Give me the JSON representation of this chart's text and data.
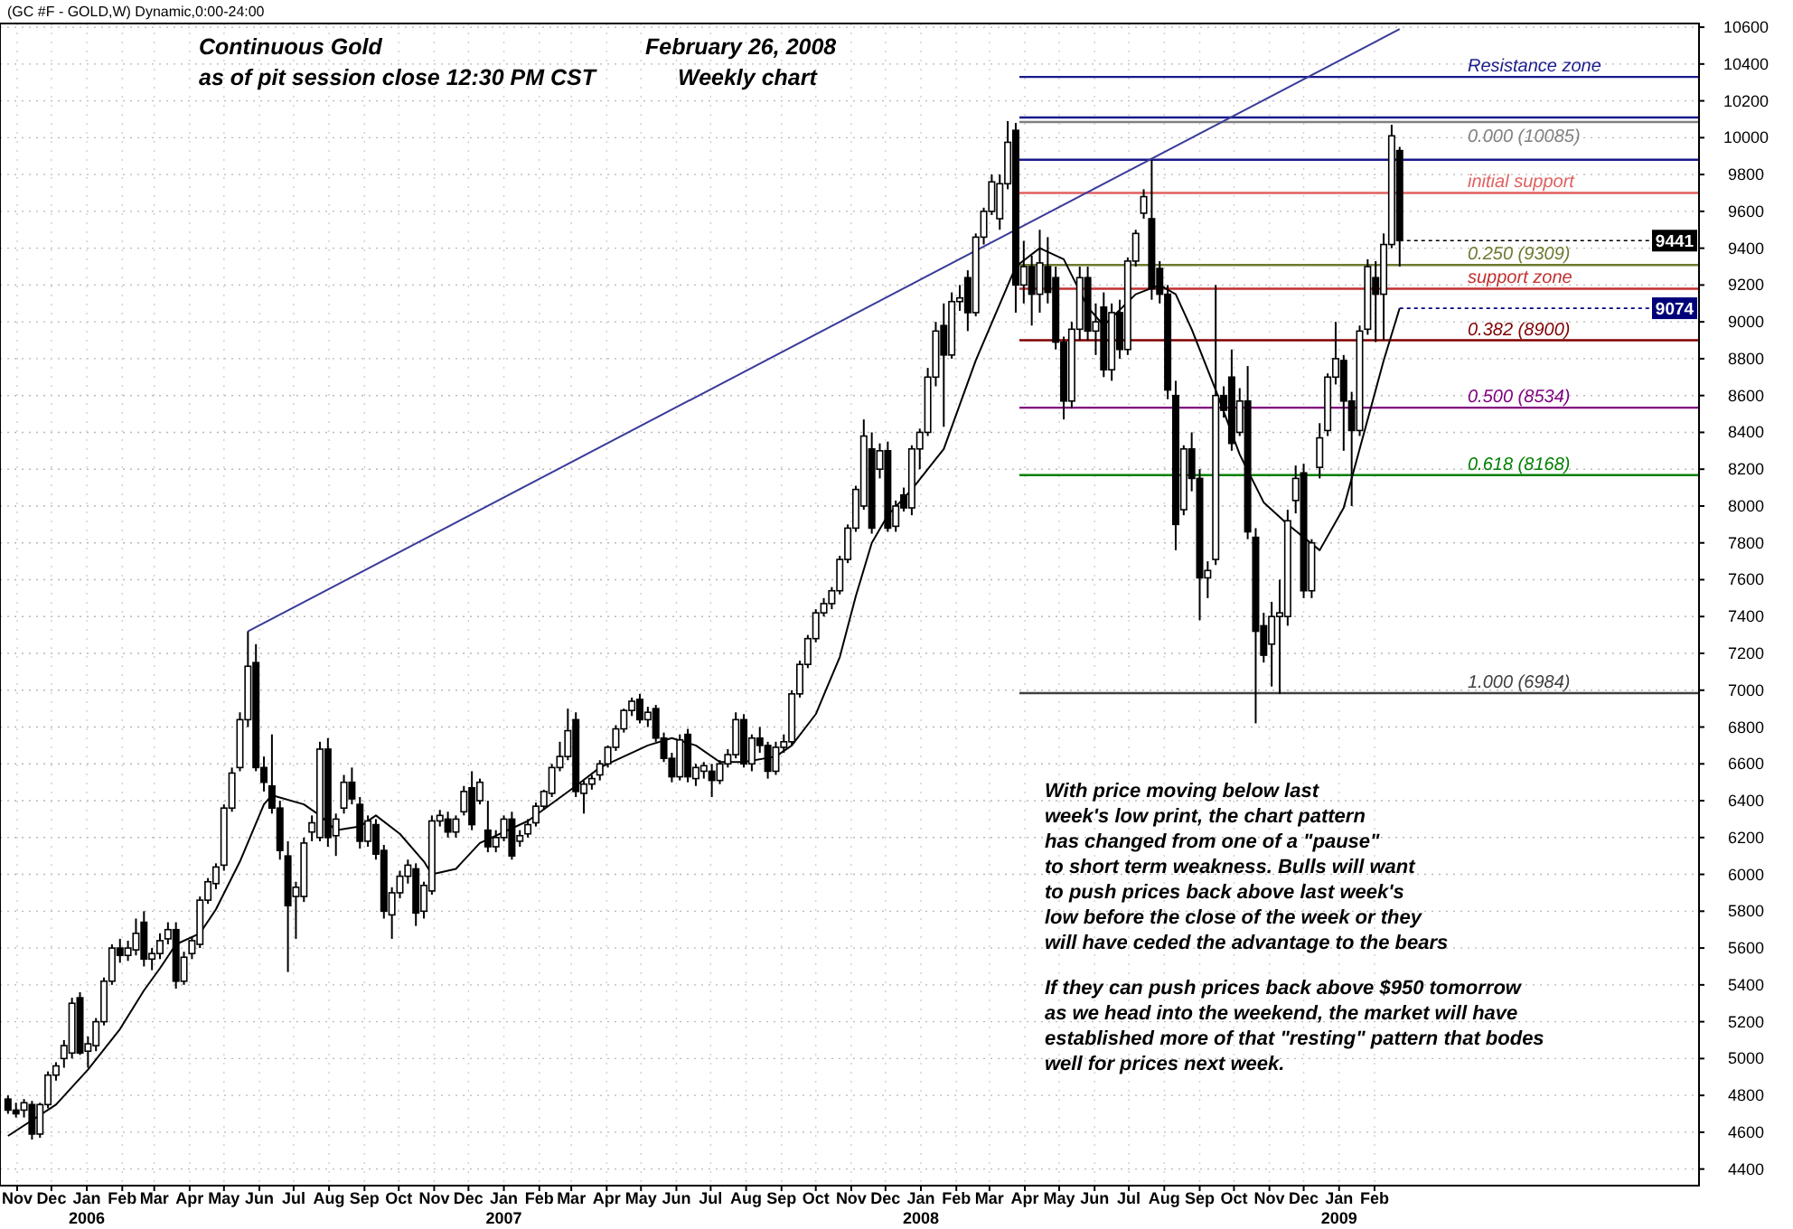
{
  "chart_data": {
    "type": "candlestick",
    "title": "Continuous Gold",
    "subtitle": "as of pit session close 12:30 PM CST",
    "x": [
      "2005-10-24",
      "2005-10-31",
      "2005-11-07",
      "2005-11-14",
      "2005-11-21",
      "2005-11-28",
      "2005-12-05",
      "2005-12-12",
      "2005-12-19",
      "2005-12-26",
      "2006-01-02",
      "2006-01-09",
      "2006-01-16",
      "2006-01-23",
      "2006-01-30",
      "2006-02-06",
      "2006-02-13",
      "2006-02-20",
      "2006-02-27",
      "2006-03-06",
      "2006-03-13",
      "2006-03-20",
      "2006-03-27",
      "2006-04-03",
      "2006-04-10",
      "2006-04-17",
      "2006-04-24",
      "2006-05-01",
      "2006-05-08",
      "2006-05-15",
      "2006-05-22",
      "2006-05-29",
      "2006-06-05",
      "2006-06-12",
      "2006-06-19",
      "2006-06-26",
      "2006-07-03",
      "2006-07-10",
      "2006-07-17",
      "2006-07-24",
      "2006-07-31",
      "2006-08-07",
      "2006-08-14",
      "2006-08-21",
      "2006-08-28",
      "2006-09-04",
      "2006-09-11",
      "2006-09-18",
      "2006-09-25",
      "2006-10-02",
      "2006-10-09",
      "2006-10-16",
      "2006-10-23",
      "2006-10-30",
      "2006-11-06",
      "2006-11-13",
      "2006-11-20",
      "2006-11-27",
      "2006-12-04",
      "2006-12-11",
      "2006-12-18",
      "2006-12-25",
      "2007-01-01",
      "2007-01-08",
      "2007-01-15",
      "2007-01-22",
      "2007-01-29",
      "2007-02-05",
      "2007-02-12",
      "2007-02-19",
      "2007-02-26",
      "2007-03-05",
      "2007-03-12",
      "2007-03-19",
      "2007-03-26",
      "2007-04-02",
      "2007-04-09",
      "2007-04-16",
      "2007-04-23",
      "2007-04-30",
      "2007-05-07",
      "2007-05-14",
      "2007-05-21",
      "2007-05-28",
      "2007-06-04",
      "2007-06-11",
      "2007-06-18",
      "2007-06-25",
      "2007-07-02",
      "2007-07-09",
      "2007-07-16",
      "2007-07-23",
      "2007-07-30",
      "2007-08-06",
      "2007-08-13",
      "2007-08-20",
      "2007-08-27",
      "2007-09-03",
      "2007-09-10",
      "2007-09-17",
      "2007-09-24",
      "2007-10-01",
      "2007-10-08",
      "2007-10-15",
      "2007-10-22",
      "2007-10-29",
      "2007-11-05",
      "2007-11-12",
      "2007-11-19",
      "2007-11-26",
      "2007-12-03",
      "2007-12-10",
      "2007-12-17",
      "2007-12-24",
      "2007-12-31",
      "2008-01-07",
      "2008-01-14",
      "2008-01-21",
      "2008-01-28",
      "2008-02-04",
      "2008-02-11",
      "2008-02-18",
      "2008-02-25",
      "2008-03-03",
      "2008-03-10",
      "2008-03-17",
      "2008-03-24",
      "2008-03-31",
      "2008-04-07",
      "2008-04-14",
      "2008-04-21",
      "2008-04-28",
      "2008-05-05",
      "2008-05-12",
      "2008-05-19",
      "2008-05-26",
      "2008-06-02",
      "2008-06-09",
      "2008-06-16",
      "2008-06-23",
      "2008-06-30",
      "2008-07-07",
      "2008-07-14",
      "2008-07-21",
      "2008-07-28",
      "2008-08-04",
      "2008-08-11",
      "2008-08-18",
      "2008-08-25",
      "2008-09-01",
      "2008-09-08",
      "2008-09-15",
      "2008-09-22",
      "2008-09-29",
      "2008-10-06",
      "2008-10-13",
      "2008-10-20",
      "2008-10-27",
      "2008-11-03",
      "2008-11-10",
      "2008-11-17",
      "2008-11-24",
      "2008-12-01",
      "2008-12-08",
      "2008-12-15",
      "2008-12-22",
      "2008-12-29",
      "2009-01-05",
      "2009-01-12",
      "2009-01-19",
      "2009-01-26",
      "2009-02-02",
      "2009-02-09",
      "2009-02-16",
      "2009-02-23"
    ],
    "ohlc": [
      [
        4780,
        4800,
        4700,
        4720
      ],
      [
        4720,
        4760,
        4680,
        4700
      ],
      [
        4720,
        4780,
        4680,
        4760
      ],
      [
        4750,
        4770,
        4560,
        4590
      ],
      [
        4590,
        4760,
        4570,
        4750
      ],
      [
        4750,
        4930,
        4730,
        4910
      ],
      [
        4910,
        4980,
        4880,
        4960
      ],
      [
        5000,
        5100,
        4950,
        5070
      ],
      [
        5030,
        5330,
        5000,
        5300
      ],
      [
        5330,
        5360,
        5020,
        5030
      ],
      [
        5040,
        5120,
        4950,
        5080
      ],
      [
        5070,
        5220,
        5040,
        5200
      ],
      [
        5200,
        5440,
        5180,
        5420
      ],
      [
        5420,
        5620,
        5400,
        5600
      ],
      [
        5600,
        5650,
        5520,
        5560
      ],
      [
        5560,
        5640,
        5530,
        5600
      ],
      [
        5590,
        5760,
        5560,
        5680
      ],
      [
        5740,
        5800,
        5500,
        5540
      ],
      [
        5540,
        5600,
        5480,
        5570
      ],
      [
        5570,
        5680,
        5540,
        5640
      ],
      [
        5650,
        5740,
        5620,
        5700
      ],
      [
        5700,
        5740,
        5380,
        5420
      ],
      [
        5420,
        5580,
        5400,
        5550
      ],
      [
        5570,
        5660,
        5540,
        5640
      ],
      [
        5620,
        5880,
        5600,
        5860
      ],
      [
        5860,
        5980,
        5840,
        5960
      ],
      [
        5950,
        6060,
        5920,
        6040
      ],
      [
        6050,
        6380,
        6020,
        6360
      ],
      [
        6360,
        6580,
        6340,
        6550
      ],
      [
        6580,
        6880,
        6560,
        6840
      ],
      [
        6840,
        7320,
        6800,
        7130
      ],
      [
        7150,
        7250,
        6560,
        6580
      ],
      [
        6580,
        6640,
        6450,
        6500
      ],
      [
        6480,
        6760,
        6330,
        6360
      ],
      [
        6360,
        6400,
        6080,
        6130
      ],
      [
        6100,
        6180,
        5470,
        5830
      ],
      [
        5880,
        5960,
        5650,
        5930
      ],
      [
        5880,
        6200,
        5850,
        6170
      ],
      [
        6230,
        6320,
        6180,
        6280
      ],
      [
        6200,
        6720,
        6180,
        6680
      ],
      [
        6680,
        6740,
        6150,
        6200
      ],
      [
        6210,
        6330,
        6100,
        6300
      ],
      [
        6360,
        6540,
        6330,
        6500
      ],
      [
        6500,
        6580,
        6380,
        6410
      ],
      [
        6380,
        6420,
        6140,
        6180
      ],
      [
        6180,
        6320,
        6150,
        6290
      ],
      [
        6270,
        6300,
        6080,
        6110
      ],
      [
        6130,
        6160,
        5760,
        5800
      ],
      [
        5780,
        5930,
        5650,
        5900
      ],
      [
        5900,
        6020,
        5870,
        5990
      ],
      [
        5990,
        6080,
        5950,
        6050
      ],
      [
        6030,
        6060,
        5720,
        5790
      ],
      [
        5800,
        5960,
        5760,
        5940
      ],
      [
        5910,
        6320,
        5890,
        6290
      ],
      [
        6290,
        6350,
        6260,
        6320
      ],
      [
        6300,
        6340,
        6200,
        6230
      ],
      [
        6230,
        6320,
        6200,
        6300
      ],
      [
        6340,
        6480,
        6320,
        6450
      ],
      [
        6470,
        6560,
        6240,
        6270
      ],
      [
        6400,
        6520,
        6380,
        6500
      ],
      [
        6240,
        6400,
        6120,
        6150
      ],
      [
        6150,
        6240,
        6120,
        6200
      ],
      [
        6200,
        6320,
        6180,
        6300
      ],
      [
        6300,
        6340,
        6080,
        6100
      ],
      [
        6180,
        6240,
        6150,
        6210
      ],
      [
        6220,
        6300,
        6200,
        6270
      ],
      [
        6280,
        6390,
        6260,
        6370
      ],
      [
        6370,
        6460,
        6350,
        6450
      ],
      [
        6440,
        6600,
        6420,
        6580
      ],
      [
        6580,
        6720,
        6560,
        6640
      ],
      [
        6640,
        6900,
        6620,
        6780
      ],
      [
        6840,
        6880,
        6420,
        6450
      ],
      [
        6440,
        6510,
        6330,
        6490
      ],
      [
        6490,
        6540,
        6460,
        6520
      ],
      [
        6540,
        6620,
        6510,
        6600
      ],
      [
        6600,
        6700,
        6580,
        6690
      ],
      [
        6690,
        6810,
        6670,
        6790
      ],
      [
        6790,
        6900,
        6770,
        6890
      ],
      [
        6890,
        6960,
        6860,
        6940
      ],
      [
        6950,
        6980,
        6820,
        6840
      ],
      [
        6840,
        6910,
        6800,
        6880
      ],
      [
        6900,
        6920,
        6720,
        6740
      ],
      [
        6740,
        6770,
        6610,
        6630
      ],
      [
        6630,
        6660,
        6500,
        6530
      ],
      [
        6530,
        6760,
        6510,
        6730
      ],
      [
        6760,
        6790,
        6500,
        6530
      ],
      [
        6520,
        6600,
        6480,
        6580
      ],
      [
        6560,
        6610,
        6520,
        6590
      ],
      [
        6560,
        6600,
        6420,
        6510
      ],
      [
        6510,
        6620,
        6490,
        6600
      ],
      [
        6600,
        6680,
        6580,
        6650
      ],
      [
        6650,
        6880,
        6630,
        6840
      ],
      [
        6840,
        6870,
        6580,
        6600
      ],
      [
        6600,
        6760,
        6560,
        6740
      ],
      [
        6740,
        6800,
        6660,
        6700
      ],
      [
        6700,
        6720,
        6520,
        6560
      ],
      [
        6560,
        6720,
        6540,
        6690
      ],
      [
        6690,
        6760,
        6660,
        6720
      ],
      [
        6720,
        7000,
        6700,
        6980
      ],
      [
        6980,
        7160,
        6960,
        7140
      ],
      [
        7140,
        7300,
        7120,
        7280
      ],
      [
        7280,
        7440,
        7260,
        7420
      ],
      [
        7420,
        7500,
        7400,
        7470
      ],
      [
        7470,
        7560,
        7440,
        7540
      ],
      [
        7540,
        7730,
        7520,
        7710
      ],
      [
        7710,
        7900,
        7690,
        7880
      ],
      [
        7880,
        8110,
        7860,
        8090
      ],
      [
        8000,
        8470,
        7980,
        8380
      ],
      [
        8310,
        8400,
        7850,
        7880
      ],
      [
        8200,
        8340,
        8150,
        8300
      ],
      [
        8300,
        8350,
        7860,
        7880
      ],
      [
        7890,
        8030,
        7860,
        8000
      ],
      [
        8060,
        8100,
        7970,
        7990
      ],
      [
        7990,
        8330,
        7950,
        8310
      ],
      [
        8310,
        8420,
        8200,
        8400
      ],
      [
        8400,
        8750,
        8380,
        8700
      ],
      [
        8700,
        9000,
        8650,
        8950
      ],
      [
        8980,
        9100,
        8430,
        8820
      ],
      [
        8820,
        9160,
        8800,
        9110
      ],
      [
        9110,
        9200,
        9060,
        9130
      ],
      [
        9240,
        9280,
        8950,
        9050
      ],
      [
        9050,
        9480,
        9030,
        9460
      ],
      [
        9460,
        9620,
        9420,
        9600
      ],
      [
        9600,
        9800,
        9580,
        9760
      ],
      [
        9560,
        9800,
        9500,
        9750
      ],
      [
        9750,
        10090,
        9720,
        9975
      ],
      [
        10040,
        10080,
        9050,
        9200
      ],
      [
        9200,
        9440,
        9100,
        9300
      ],
      [
        9300,
        9360,
        8980,
        9150
      ],
      [
        9150,
        9500,
        9050,
        9320
      ],
      [
        9300,
        9460,
        9100,
        9160
      ],
      [
        9240,
        9300,
        8850,
        8890
      ],
      [
        8890,
        8920,
        8470,
        8570
      ],
      [
        8570,
        9000,
        8530,
        8960
      ],
      [
        8960,
        9300,
        8900,
        9240
      ],
      [
        9240,
        9300,
        8900,
        8950
      ],
      [
        8950,
        9100,
        8820,
        9000
      ],
      [
        9080,
        9160,
        8700,
        8740
      ],
      [
        8740,
        9100,
        8680,
        9050
      ],
      [
        9050,
        9120,
        8800,
        8850
      ],
      [
        8850,
        9350,
        8820,
        9330
      ],
      [
        9330,
        9500,
        9300,
        9480
      ],
      [
        9590,
        9720,
        9560,
        9680
      ],
      [
        9560,
        9880,
        9120,
        9180
      ],
      [
        9290,
        9330,
        9100,
        9150
      ],
      [
        9150,
        9200,
        8580,
        8630
      ],
      [
        8600,
        8680,
        7760,
        7900
      ],
      [
        7980,
        8330,
        7950,
        8310
      ],
      [
        8310,
        8400,
        8080,
        8150
      ],
      [
        8150,
        8200,
        7380,
        7610
      ],
      [
        7610,
        7700,
        7500,
        7650
      ],
      [
        7710,
        9200,
        7680,
        8600
      ],
      [
        8600,
        8650,
        8480,
        8520
      ],
      [
        8700,
        8850,
        8300,
        8340
      ],
      [
        8400,
        8640,
        8380,
        8570
      ],
      [
        8570,
        8760,
        7820,
        7860
      ],
      [
        7830,
        7880,
        6820,
        7320
      ],
      [
        7350,
        7420,
        7150,
        7190
      ],
      [
        7250,
        7480,
        7020,
        7400
      ],
      [
        7400,
        7600,
        6980,
        7420
      ],
      [
        7400,
        7980,
        7350,
        7920
      ],
      [
        8030,
        8220,
        7960,
        8150
      ],
      [
        8180,
        8230,
        7500,
        7540
      ],
      [
        7540,
        7820,
        7500,
        7800
      ],
      [
        8210,
        8450,
        8150,
        8370
      ],
      [
        8410,
        8720,
        8380,
        8700
      ],
      [
        8700,
        9000,
        8660,
        8800
      ],
      [
        8790,
        8820,
        8300,
        8570
      ],
      [
        8570,
        8620,
        8000,
        8410
      ],
      [
        8410,
        8980,
        8380,
        8950
      ],
      [
        8960,
        9340,
        8930,
        9300
      ],
      [
        9240,
        9330,
        8890,
        9150
      ],
      [
        9150,
        9480,
        8900,
        9420
      ],
      [
        9420,
        10070,
        9400,
        10010
      ],
      [
        9930,
        9950,
        9300,
        9441
      ]
    ],
    "series": [
      {
        "type": "line",
        "color": "#000000",
        "x": [
          "2005-10-24",
          "2005-12-05",
          "2006-01-02",
          "2006-01-30",
          "2006-02-20",
          "2006-03-06",
          "2006-03-20",
          "2006-04-10",
          "2006-04-24",
          "2006-05-15",
          "2006-06-05",
          "2006-06-12",
          "2006-07-10",
          "2006-07-24",
          "2006-08-07",
          "2006-08-28",
          "2006-09-11",
          "2006-10-02",
          "2006-10-23",
          "2006-10-30",
          "2006-11-20",
          "2006-12-11",
          "2007-01-22",
          "2007-03-05",
          "2007-03-26",
          "2007-05-07",
          "2007-05-28",
          "2007-06-18",
          "2007-07-09",
          "2007-07-30",
          "2007-08-27",
          "2007-09-10",
          "2007-10-01",
          "2007-10-22",
          "2007-11-05",
          "2007-11-19",
          "2007-12-03",
          "2007-12-24",
          "2008-01-21",
          "2008-02-18",
          "2008-03-24",
          "2008-04-14",
          "2008-05-05",
          "2008-05-26",
          "2008-06-09",
          "2008-07-07",
          "2008-07-28",
          "2008-08-11",
          "2008-08-25",
          "2008-09-15",
          "2008-10-06",
          "2008-10-27",
          "2008-11-17",
          "2008-12-15",
          "2009-01-05",
          "2009-01-19",
          "2009-02-09",
          "2009-02-23"
        ],
        "values": [
          4580,
          4750,
          4940,
          5160,
          5370,
          5490,
          5620,
          5680,
          5810,
          6070,
          6380,
          6430,
          6380,
          6320,
          6240,
          6260,
          6320,
          6220,
          6070,
          6000,
          6030,
          6170,
          6290,
          6480,
          6580,
          6700,
          6740,
          6700,
          6610,
          6610,
          6640,
          6700,
          6870,
          7180,
          7510,
          7800,
          7950,
          8090,
          8310,
          8790,
          9300,
          9400,
          9340,
          9080,
          8980,
          9150,
          9200,
          9150,
          8960,
          8630,
          8280,
          8020,
          7900,
          7760,
          7990,
          8310,
          8790,
          9074
        ]
      },
      {
        "type": "line",
        "color": "#3a3a9a",
        "x": [
          "2006-05-22",
          "2009-02-23"
        ],
        "values": [
          7320,
          10590
        ]
      }
    ],
    "xlim": [
      "2005-10-17",
      "2009-11-12"
    ],
    "ylim": [
      4310,
      10620
    ],
    "xticks": [
      {
        "value": "2005-11-01",
        "label": "Nov"
      },
      {
        "value": "2005-12-01",
        "label": "Dec"
      },
      {
        "value": "2006-01-01",
        "label": "Jan\n2006"
      },
      {
        "value": "2006-02-01",
        "label": "Feb"
      },
      {
        "value": "2006-03-01",
        "label": "Mar"
      },
      {
        "value": "2006-04-01",
        "label": "Apr"
      },
      {
        "value": "2006-05-01",
        "label": "May"
      },
      {
        "value": "2006-06-01",
        "label": "Jun"
      },
      {
        "value": "2006-07-01",
        "label": "Jul"
      },
      {
        "value": "2006-08-01",
        "label": "Aug"
      },
      {
        "value": "2006-09-01",
        "label": "Sep"
      },
      {
        "value": "2006-10-01",
        "label": "Oct"
      },
      {
        "value": "2006-11-01",
        "label": "Nov"
      },
      {
        "value": "2006-12-01",
        "label": "Dec"
      },
      {
        "value": "2007-01-01",
        "label": "Jan\n2007"
      },
      {
        "value": "2007-02-01",
        "label": "Feb"
      },
      {
        "value": "2007-03-01",
        "label": "Mar"
      },
      {
        "value": "2007-04-01",
        "label": "Apr"
      },
      {
        "value": "2007-05-01",
        "label": "May"
      },
      {
        "value": "2007-06-01",
        "label": "Jun"
      },
      {
        "value": "2007-07-01",
        "label": "Jul"
      },
      {
        "value": "2007-08-01",
        "label": "Aug"
      },
      {
        "value": "2007-09-01",
        "label": "Sep"
      },
      {
        "value": "2007-10-01",
        "label": "Oct"
      },
      {
        "value": "2007-11-01",
        "label": "Nov"
      },
      {
        "value": "2007-12-01",
        "label": "Dec"
      },
      {
        "value": "2008-01-01",
        "label": "Jan\n2008"
      },
      {
        "value": "2008-02-01",
        "label": "Feb"
      },
      {
        "value": "2008-03-01",
        "label": "Mar"
      },
      {
        "value": "2008-04-01",
        "label": "Apr"
      },
      {
        "value": "2008-05-01",
        "label": "May"
      },
      {
        "value": "2008-06-01",
        "label": "Jun"
      },
      {
        "value": "2008-07-01",
        "label": "Jul"
      },
      {
        "value": "2008-08-01",
        "label": "Aug"
      },
      {
        "value": "2008-09-01",
        "label": "Sep"
      },
      {
        "value": "2008-10-01",
        "label": "Oct"
      },
      {
        "value": "2008-11-01",
        "label": "Nov"
      },
      {
        "value": "2008-12-01",
        "label": "Dec"
      },
      {
        "value": "2009-01-01",
        "label": "Jan\n2009"
      },
      {
        "value": "2009-02-01",
        "label": "Feb"
      }
    ],
    "yticks": [
      4400,
      4600,
      4800,
      5000,
      5200,
      5400,
      5600,
      5800,
      6000,
      6200,
      6400,
      6600,
      6800,
      7000,
      7200,
      7400,
      7600,
      7800,
      8000,
      8200,
      8400,
      8600,
      8800,
      9000,
      9200,
      9400,
      9600,
      9800,
      10000,
      10200,
      10400,
      10600
    ],
    "grid": true,
    "marker": "none",
    "ref_lines": [
      {
        "axis": "y",
        "value": 10330,
        "label": "Resistance zone",
        "color": "#1a1a8c"
      },
      {
        "axis": "y",
        "value": 10110,
        "label": null,
        "color": "#1a1a8c"
      },
      {
        "axis": "y",
        "value": 10085,
        "label": "0.000 (10085)",
        "color": "#808080"
      },
      {
        "axis": "y",
        "value": 9880,
        "label": null,
        "color": "#1a1a8c"
      },
      {
        "axis": "y",
        "value": 9700,
        "label": "initial support",
        "color": "#e06060"
      },
      {
        "axis": "y",
        "value": 9309,
        "label": "0.250 (9309)",
        "color": "#6b7a2e"
      },
      {
        "axis": "y",
        "value": 9180,
        "label": "support zone",
        "color": "#c03030"
      },
      {
        "axis": "y",
        "value": 8900,
        "label": "0.382 (8900)",
        "color": "#800000"
      },
      {
        "axis": "y",
        "value": 8534,
        "label": "0.500 (8534)",
        "color": "#800080"
      },
      {
        "axis": "y",
        "value": 8168,
        "label": "0.618 (8168)",
        "color": "#008000"
      },
      {
        "axis": "y",
        "value": 6984,
        "label": "1.000 (6984)",
        "color": "#404040"
      }
    ],
    "annotations": [
      "(GC #F - GOLD,W) Dynamic,0:00-24:00",
      "February 26, 2008",
      "Weekly chart",
      "With price moving below last\nweek's low print, the chart pattern\nhas changed from one of a \"pause\"\nto short term weakness. Bulls will want\nto push prices back above last week's\nlow before the close of the week or they\nwill have ceded the advantage to the bears",
      "If they can push prices back above $950 tomorrow\nas we head into the weekend, the market will have\nestablished more of that \"resting\" pattern that bodes\nwell for prices next week.",
      {
        "text": "9441",
        "x": "2009-02-23",
        "y": 9441
      },
      {
        "text": "9074",
        "x": "2009-02-23",
        "y": 9074
      }
    ]
  }
}
